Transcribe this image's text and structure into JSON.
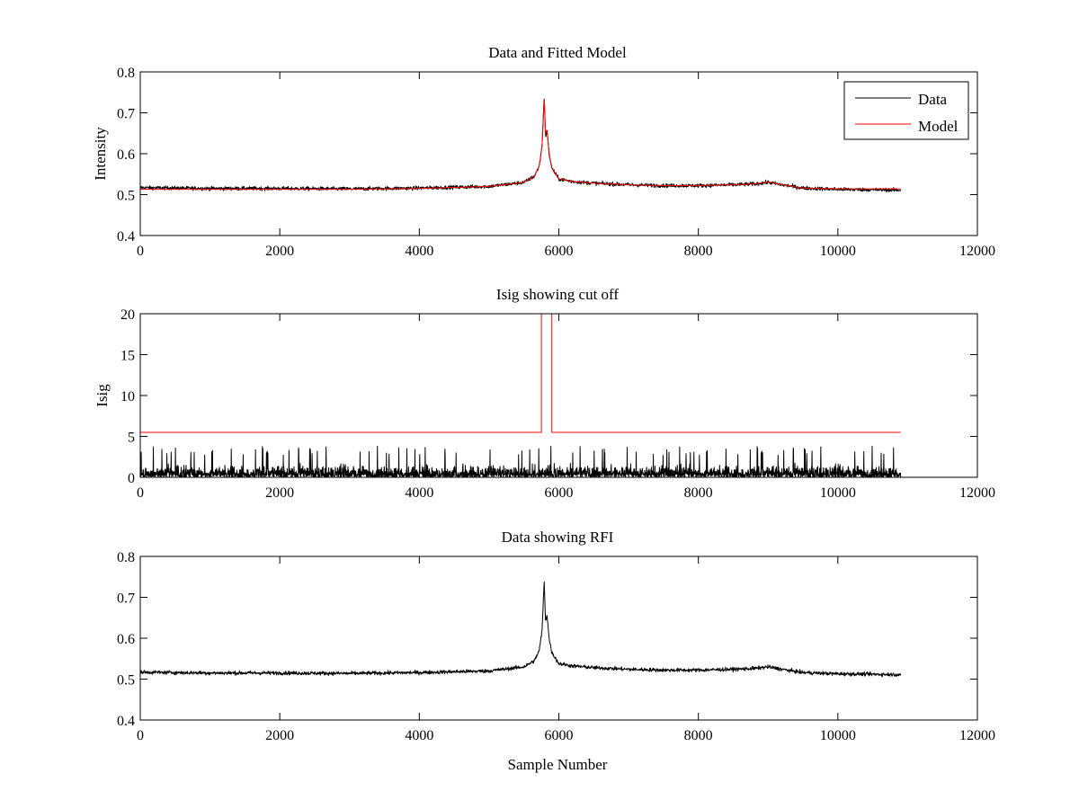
{
  "chart_data": [
    {
      "type": "line",
      "title": "Data and Fitted Model",
      "xlabel": "",
      "ylabel": "Intensity",
      "xlim": [
        0,
        12000
      ],
      "ylim": [
        0.4,
        0.8
      ],
      "xticks": [
        "0",
        "2000",
        "4000",
        "6000",
        "8000",
        "10000",
        "12000"
      ],
      "yticks": [
        "0.4",
        "0.5",
        "0.6",
        "0.7",
        "0.8"
      ],
      "legend": {
        "position": "top-right",
        "entries": [
          "Data",
          "Model"
        ]
      },
      "series": [
        {
          "name": "Data",
          "color": "#000000",
          "kind": "noisy",
          "x": [
            0,
            1000,
            2000,
            3000,
            4000,
            5000,
            5500,
            5650,
            5720,
            5760,
            5790,
            5810,
            5830,
            5860,
            5900,
            6000,
            6200,
            6500,
            7000,
            7500,
            8000,
            8500,
            8800,
            9000,
            9200,
            9500,
            10000,
            10500,
            10900
          ],
          "values": [
            0.517,
            0.515,
            0.515,
            0.514,
            0.516,
            0.52,
            0.53,
            0.545,
            0.57,
            0.62,
            0.74,
            0.64,
            0.66,
            0.6,
            0.565,
            0.538,
            0.532,
            0.528,
            0.524,
            0.522,
            0.522,
            0.524,
            0.526,
            0.53,
            0.524,
            0.516,
            0.513,
            0.512,
            0.511
          ]
        },
        {
          "name": "Model",
          "color": "#ff0000",
          "kind": "smooth",
          "x": [
            0,
            1000,
            2000,
            3000,
            4000,
            5000,
            5500,
            5650,
            5720,
            5760,
            5790,
            5810,
            5830,
            5860,
            5900,
            6000,
            6200,
            6500,
            7000,
            7500,
            8000,
            8500,
            8800,
            9000,
            9200,
            9500,
            10000,
            10500,
            10900
          ],
          "values": [
            0.513,
            0.513,
            0.513,
            0.513,
            0.515,
            0.52,
            0.53,
            0.545,
            0.57,
            0.62,
            0.745,
            0.64,
            0.665,
            0.6,
            0.565,
            0.538,
            0.532,
            0.528,
            0.524,
            0.522,
            0.522,
            0.524,
            0.526,
            0.531,
            0.524,
            0.516,
            0.514,
            0.514,
            0.514
          ]
        }
      ]
    },
    {
      "type": "line",
      "title": "Isig showing cut off",
      "xlabel": "",
      "ylabel": "Isig",
      "xlim": [
        0,
        12000
      ],
      "ylim": [
        0,
        20
      ],
      "xticks": [
        "0",
        "2000",
        "4000",
        "6000",
        "8000",
        "10000",
        "12000"
      ],
      "yticks": [
        "0",
        "5",
        "10",
        "15",
        "20"
      ],
      "series": [
        {
          "name": "Isig",
          "color": "#000000",
          "kind": "spiky",
          "x_range": [
            0,
            10900
          ],
          "typical": 1.0,
          "max": 3.8
        },
        {
          "name": "Cut off",
          "color": "#ff0000",
          "kind": "step",
          "x": [
            0,
            5750,
            5750,
            5900,
            5900,
            10900
          ],
          "values": [
            5.5,
            5.5,
            20,
            20,
            5.5,
            5.5
          ]
        }
      ]
    },
    {
      "type": "line",
      "title": "Data showing RFI",
      "xlabel": "Sample Number",
      "ylabel": "",
      "xlim": [
        0,
        12000
      ],
      "ylim": [
        0.4,
        0.8
      ],
      "xticks": [
        "0",
        "2000",
        "4000",
        "6000",
        "8000",
        "10000",
        "12000"
      ],
      "yticks": [
        "0.4",
        "0.5",
        "0.6",
        "0.7",
        "0.8"
      ],
      "series": [
        {
          "name": "Data",
          "color": "#000000",
          "kind": "noisy",
          "x": [
            0,
            1000,
            2000,
            3000,
            4000,
            5000,
            5500,
            5650,
            5720,
            5760,
            5790,
            5810,
            5830,
            5860,
            5900,
            6000,
            6200,
            6500,
            7000,
            7500,
            8000,
            8500,
            8800,
            9000,
            9200,
            9500,
            10000,
            10500,
            10900
          ],
          "values": [
            0.517,
            0.515,
            0.515,
            0.514,
            0.516,
            0.52,
            0.53,
            0.545,
            0.57,
            0.62,
            0.74,
            0.64,
            0.66,
            0.6,
            0.565,
            0.538,
            0.532,
            0.528,
            0.524,
            0.522,
            0.522,
            0.524,
            0.526,
            0.53,
            0.524,
            0.516,
            0.513,
            0.512,
            0.511
          ]
        }
      ]
    }
  ]
}
